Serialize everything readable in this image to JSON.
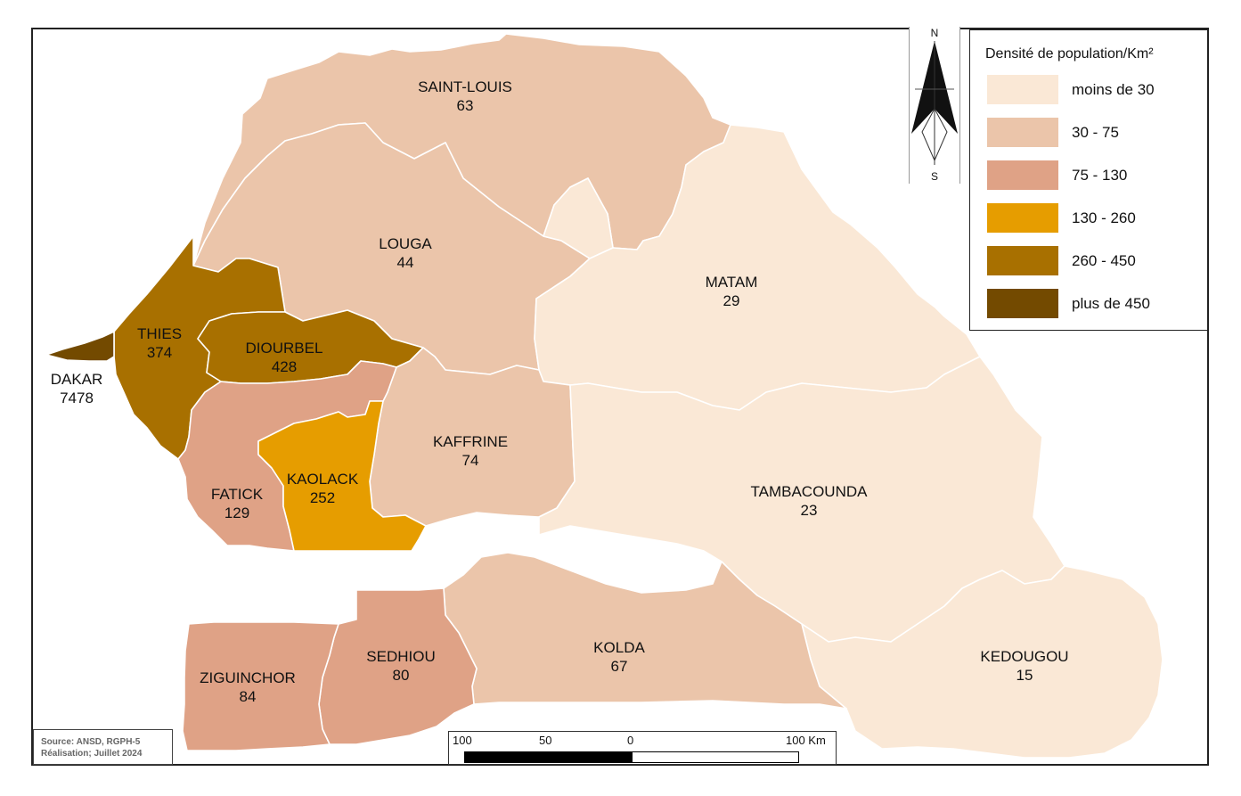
{
  "legend": {
    "title": "Densité de population/Km²",
    "classes": [
      {
        "label": "moins de 30",
        "color": "#fae8d6"
      },
      {
        "label": "30 - 75",
        "color": "#ebc5aa"
      },
      {
        "label": "75 - 130",
        "color": "#dfa286"
      },
      {
        "label": "130 - 260",
        "color": "#e69d00"
      },
      {
        "label": "260 - 450",
        "color": "#a87000"
      },
      {
        "label": "plus de 450",
        "color": "#734a00"
      }
    ]
  },
  "north_arrow": {
    "north": "N",
    "south": "S"
  },
  "regions": [
    {
      "id": "saint-louis",
      "name": "SAINT-LOUIS",
      "density": "63"
    },
    {
      "id": "louga",
      "name": "LOUGA",
      "density": "44"
    },
    {
      "id": "matam",
      "name": "MATAM",
      "density": "29"
    },
    {
      "id": "thies",
      "name": "THIES",
      "density": "374"
    },
    {
      "id": "diourbel",
      "name": "DIOURBEL",
      "density": "428"
    },
    {
      "id": "dakar",
      "name": "DAKAR",
      "density": "7478"
    },
    {
      "id": "kaffrine",
      "name": "KAFFRINE",
      "density": "74"
    },
    {
      "id": "fatick",
      "name": "FATICK",
      "density": "129"
    },
    {
      "id": "kaolack",
      "name": "KAOLACK",
      "density": "252"
    },
    {
      "id": "tambacounda",
      "name": "TAMBACOUNDA",
      "density": "23"
    },
    {
      "id": "kolda",
      "name": "KOLDA",
      "density": "67"
    },
    {
      "id": "sedhiou",
      "name": "SEDHIOU",
      "density": "80"
    },
    {
      "id": "ziguinchor",
      "name": "ZIGUINCHOR",
      "density": "84"
    },
    {
      "id": "kedougou",
      "name": "KEDOUGOU",
      "density": "15"
    }
  ],
  "source": {
    "line1": "Source: ANSD, RGPH-5",
    "line2": "Réalisation; Juillet 2024"
  },
  "scale_bar": {
    "ticks": [
      "100",
      "50",
      "0",
      "100 Km"
    ]
  }
}
